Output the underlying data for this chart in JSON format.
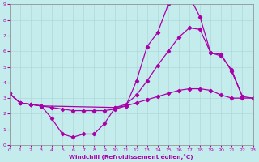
{
  "xlabel": "Windchill (Refroidissement éolien,°C)",
  "xlim": [
    0,
    23
  ],
  "ylim": [
    0,
    9
  ],
  "xticks": [
    0,
    1,
    2,
    3,
    4,
    5,
    6,
    7,
    8,
    9,
    10,
    11,
    12,
    13,
    14,
    15,
    16,
    17,
    18,
    19,
    20,
    21,
    22,
    23
  ],
  "yticks": [
    0,
    1,
    2,
    3,
    4,
    5,
    6,
    7,
    8,
    9
  ],
  "bg_color": "#c5ecec",
  "line_color": "#aa00aa",
  "grid_color": "#b0d8d8",
  "curve1_x": [
    0,
    1,
    2,
    3,
    4,
    5,
    6,
    7,
    8,
    9,
    10,
    11,
    12,
    13,
    14,
    15,
    16,
    17,
    18,
    19,
    20,
    21,
    22
  ],
  "curve1_y": [
    3.3,
    2.7,
    2.6,
    2.5,
    1.7,
    0.7,
    0.5,
    0.7,
    0.7,
    1.4,
    2.4,
    2.5,
    4.1,
    6.3,
    7.2,
    9.0,
    9.3,
    9.5,
    8.2,
    5.9,
    5.7,
    4.8,
    3.1
  ],
  "curve2_x": [
    0,
    1,
    2,
    3,
    10,
    11,
    12,
    13,
    14,
    15,
    16,
    17,
    18,
    19,
    20,
    21,
    22,
    23
  ],
  "curve2_y": [
    3.3,
    2.7,
    2.6,
    2.5,
    2.4,
    2.6,
    3.2,
    4.1,
    5.1,
    6.0,
    6.9,
    7.5,
    7.4,
    5.9,
    5.8,
    4.7,
    3.1,
    3.0
  ],
  "curve3_x": [
    0,
    1,
    2,
    3,
    4,
    5,
    6,
    7,
    8,
    9,
    10,
    11,
    12,
    13,
    14,
    15,
    16,
    17,
    18,
    19,
    20,
    21,
    22,
    23
  ],
  "curve3_y": [
    3.3,
    2.7,
    2.6,
    2.5,
    2.4,
    2.3,
    2.2,
    2.2,
    2.2,
    2.2,
    2.3,
    2.5,
    2.7,
    2.9,
    3.1,
    3.3,
    3.5,
    3.6,
    3.6,
    3.5,
    3.2,
    3.0,
    3.0,
    3.0
  ]
}
